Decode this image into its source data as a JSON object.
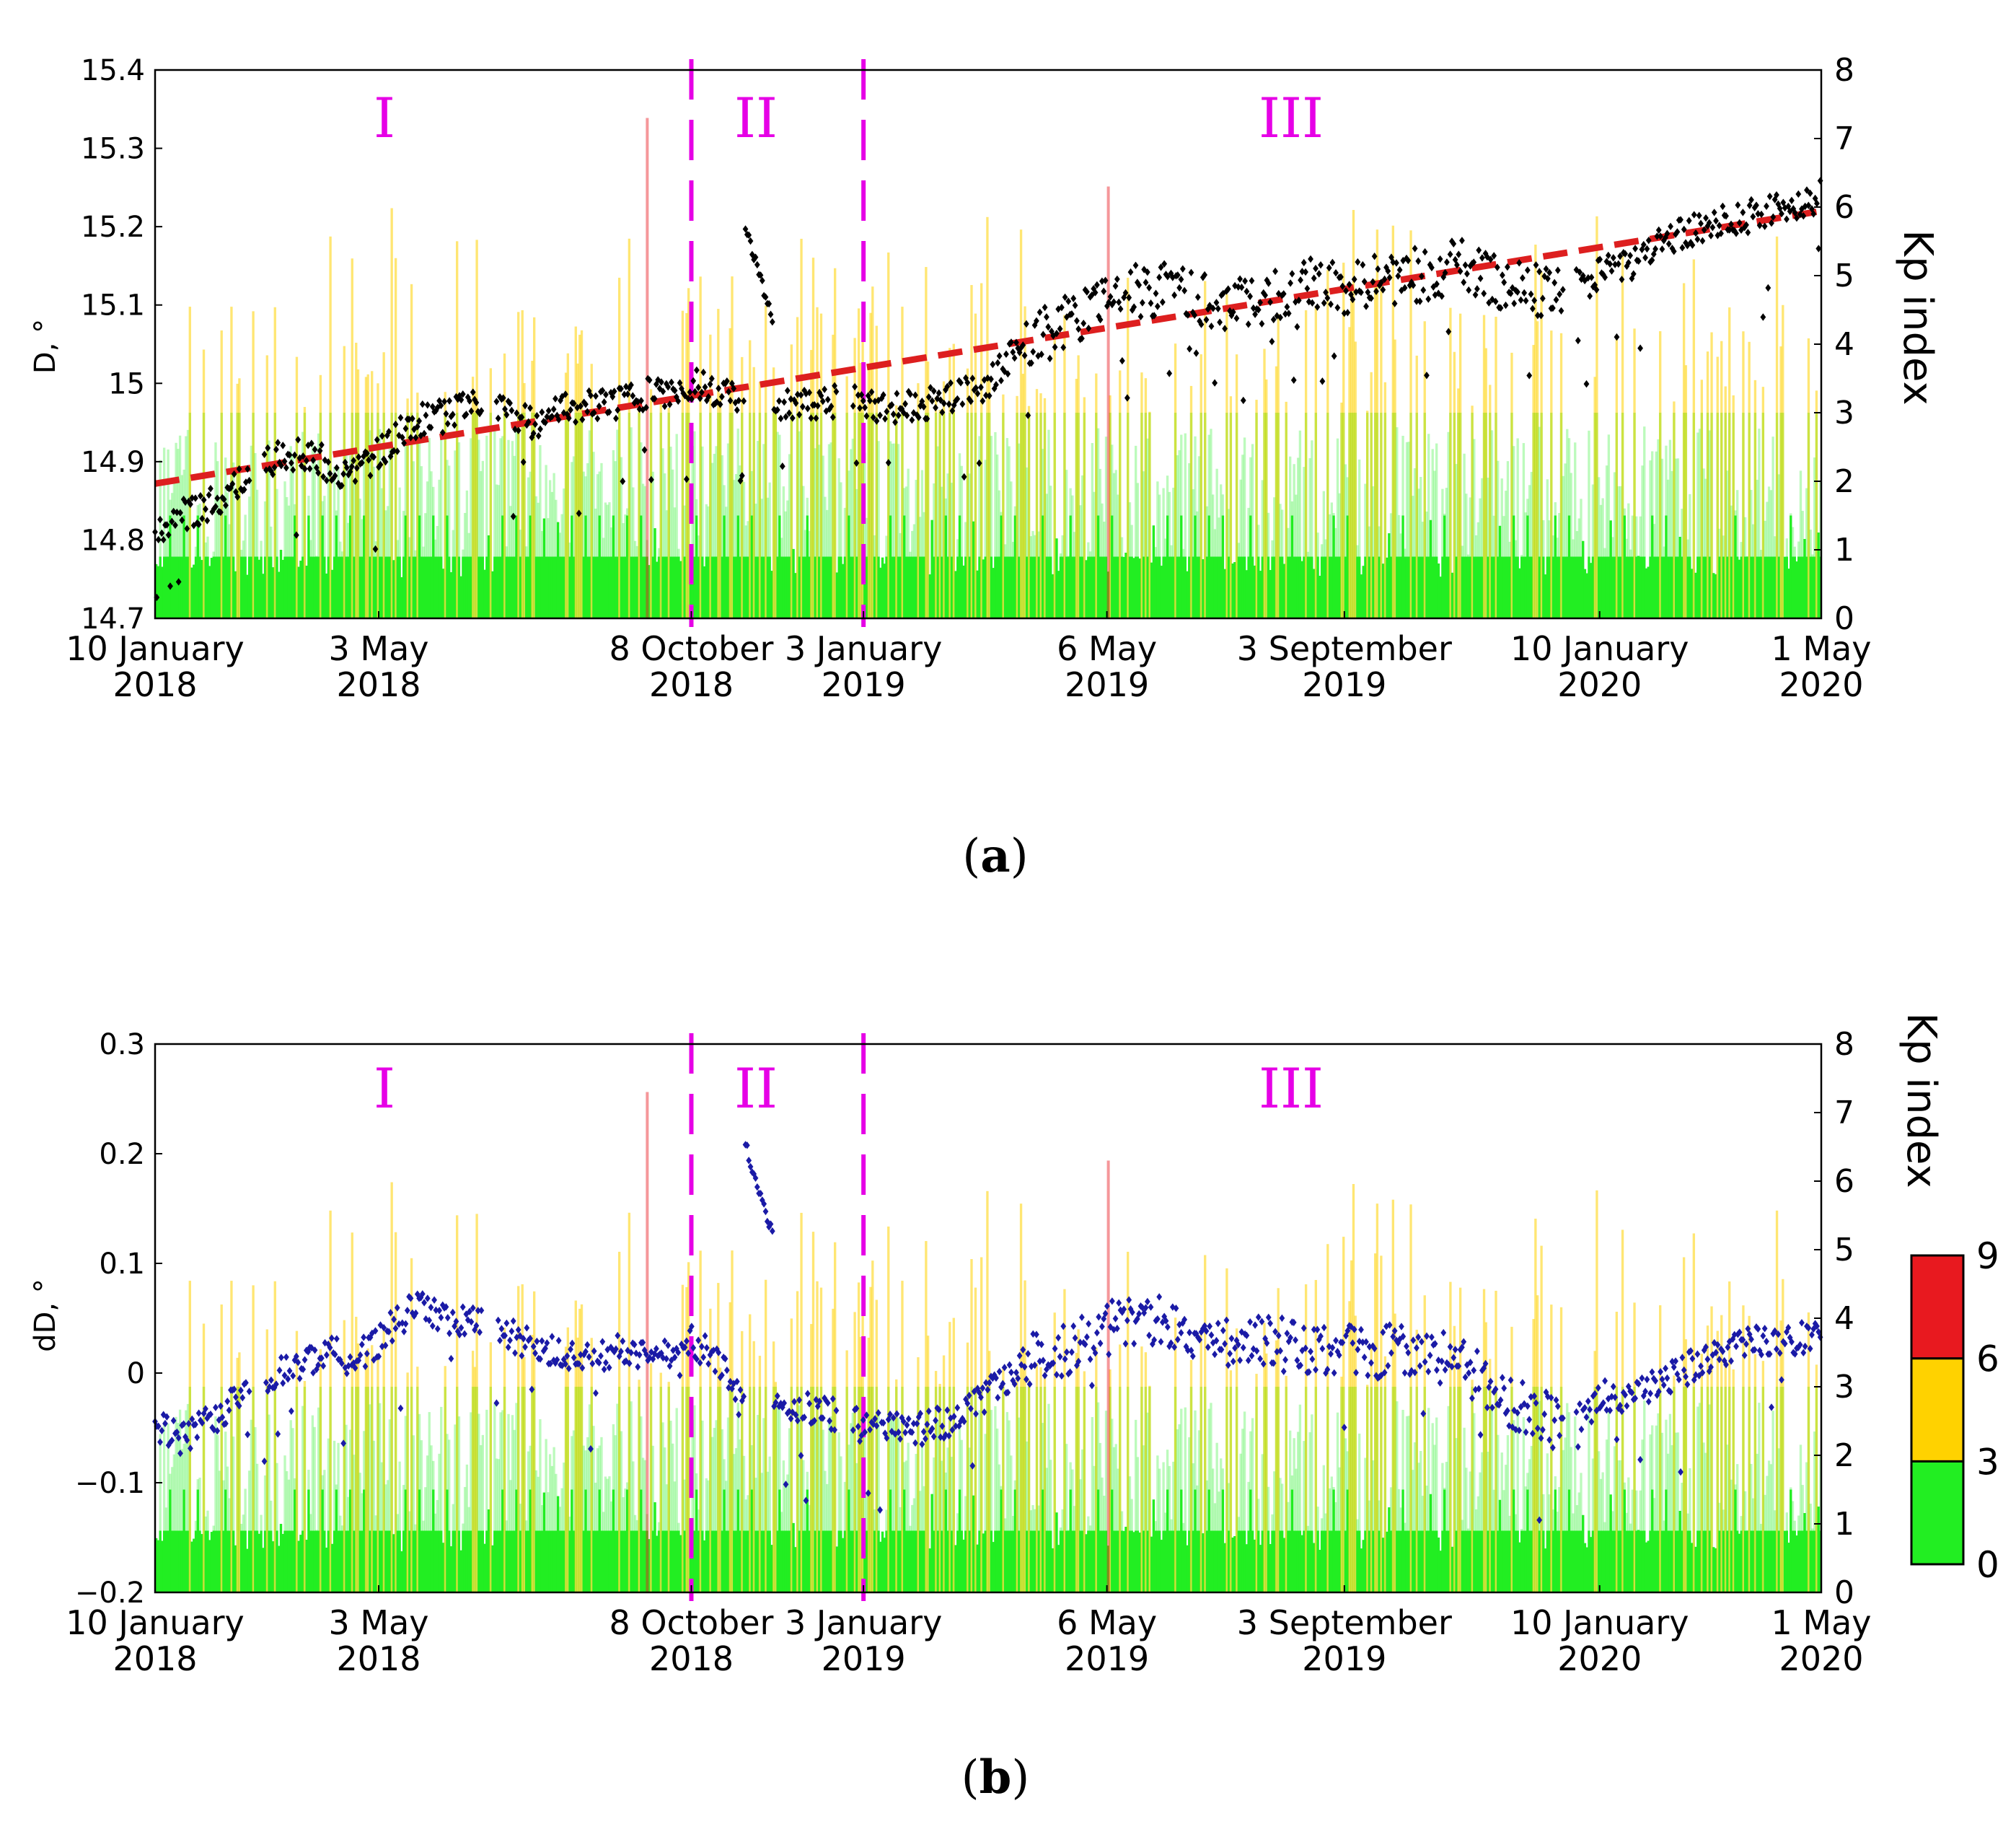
{
  "figure": {
    "panel_labels": [
      "(",
      "a",
      ")",
      "(",
      "b",
      ")"
    ]
  },
  "colors": {
    "kp_low": "#22ee22",
    "kp_mid": "#ffd200",
    "kp_high": "#e8191f",
    "panel_a_points": "#000000",
    "panel_b_points": "#1a1aa6",
    "trend": "#dd1f1f",
    "phase": "#e600e6"
  },
  "phases": {
    "labels": [
      "I",
      "II",
      "III"
    ],
    "boundary_days": [
      271,
      358
    ]
  },
  "colorbar": {
    "ticks": [
      "0",
      "3",
      "6",
      "9"
    ],
    "segments": [
      {
        "from": 0,
        "to": 3,
        "color": "#22ee22"
      },
      {
        "from": 3,
        "to": 6,
        "color": "#ffd200"
      },
      {
        "from": 6,
        "to": 9,
        "color": "#e8191f"
      }
    ]
  },
  "chart_data": [
    {
      "type": "scatter",
      "panel": "a",
      "ylabel": "D, °",
      "y2label": "Kp index",
      "ylim": [
        14.7,
        15.4
      ],
      "yticks": [
        "14.7",
        "14.8",
        "14.9",
        "15",
        "15.1",
        "15.2",
        "15.3",
        "15.4"
      ],
      "y2lim": [
        0,
        8
      ],
      "y2ticks": [
        "0",
        "1",
        "2",
        "3",
        "4",
        "5",
        "6",
        "7",
        "8"
      ],
      "x_unit": "days since 10 January 2018",
      "xlim": [
        0,
        842
      ],
      "xticks": [
        {
          "day": 0,
          "line1": "10 January",
          "line2": "2018"
        },
        {
          "day": 113,
          "line1": "3 May",
          "line2": "2018"
        },
        {
          "day": 271,
          "line1": "8 October",
          "line2": "2018"
        },
        {
          "day": 358,
          "line1": "3 January",
          "line2": "2019"
        },
        {
          "day": 481,
          "line1": "6 May",
          "line2": "2019"
        },
        {
          "day": 601,
          "line1": "3 September",
          "line2": "2019"
        },
        {
          "day": 730,
          "line1": "10 January",
          "line2": "2020"
        },
        {
          "day": 842,
          "line1": "1 May",
          "line2": "2020"
        }
      ],
      "trend_line": {
        "x": [
          0,
          842
        ],
        "y": [
          14.872,
          15.22
        ]
      },
      "series": [
        {
          "name": "D (black points)",
          "anchors": {
            "x": [
              0,
              10,
              25,
              40,
              55,
              70,
              85,
              95,
              105,
              113,
              130,
              150,
              170,
              190,
              210,
              230,
              250,
              265,
              271,
              285,
              295,
              305,
              315,
              330,
              350,
              365,
              380,
              400,
              420,
              440,
              455,
              470,
              481,
              500,
              520,
              540,
              560,
              580,
              601,
              620,
              640,
              660,
              680,
              700,
              720,
              730,
              745,
              760,
              780,
              800,
              820,
              842
            ],
            "y": [
              14.81,
              14.83,
              14.84,
              14.87,
              14.9,
              14.91,
              14.9,
              14.88,
              14.89,
              14.91,
              14.95,
              14.96,
              14.98,
              14.95,
              14.97,
              14.97,
              14.99,
              14.98,
              15.0,
              14.99,
              14.98,
              14.97,
              14.97,
              14.97,
              14.98,
              14.97,
              14.97,
              14.98,
              15.0,
              15.05,
              15.07,
              15.09,
              15.11,
              15.12,
              15.12,
              15.09,
              15.11,
              15.13,
              15.12,
              15.13,
              15.14,
              15.15,
              15.13,
              15.12,
              15.12,
              15.14,
              15.15,
              15.18,
              15.2,
              15.21,
              15.22,
              15.24
            ]
          }
        }
      ]
    },
    {
      "type": "scatter",
      "panel": "b",
      "ylabel": "dD, °",
      "y2label": "Kp index",
      "ylim": [
        -0.2,
        0.3
      ],
      "yticks": [
        "−0.2",
        "−0.1",
        "0",
        "0.1",
        "0.2",
        "0.3"
      ],
      "y2lim": [
        0,
        8
      ],
      "y2ticks": [
        "0",
        "1",
        "2",
        "3",
        "4",
        "5",
        "6",
        "7",
        "8"
      ],
      "x_unit": "days since 10 January 2018",
      "xlim": [
        0,
        842
      ],
      "xticks": [
        {
          "day": 0,
          "line1": "10 January",
          "line2": "2018"
        },
        {
          "day": 113,
          "line1": "3 May",
          "line2": "2018"
        },
        {
          "day": 271,
          "line1": "8 October",
          "line2": "2018"
        },
        {
          "day": 358,
          "line1": "3 January",
          "line2": "2019"
        },
        {
          "day": 481,
          "line1": "6 May",
          "line2": "2019"
        },
        {
          "day": 601,
          "line1": "3 September",
          "line2": "2019"
        },
        {
          "day": 730,
          "line1": "10 January",
          "line2": "2020"
        },
        {
          "day": 842,
          "line1": "1 May",
          "line2": "2020"
        }
      ],
      "series": [
        {
          "name": "dD (blue points)",
          "anchors": {
            "x": [
              0,
              15,
              30,
              45,
              60,
              75,
              90,
              100,
              113,
              130,
              150,
              170,
              185,
              200,
              215,
              230,
              250,
              265,
              271,
              285,
              300,
              315,
              330,
              345,
              360,
              375,
              390,
              405,
              420,
              440,
              460,
              481,
              500,
              520,
              540,
              560,
              580,
              601,
              620,
              640,
              660,
              680,
              700,
              720,
              730,
              750,
              770,
              790,
              810,
              830,
              842
            ],
            "y": [
              -0.05,
              -0.06,
              -0.04,
              -0.02,
              0.0,
              0.01,
              0.02,
              0.01,
              0.03,
              0.06,
              0.05,
              0.04,
              0.03,
              0.02,
              0.01,
              0.02,
              0.02,
              0.01,
              0.03,
              0.01,
              -0.04,
              -0.03,
              -0.03,
              -0.04,
              -0.05,
              -0.05,
              -0.05,
              -0.04,
              -0.02,
              0.01,
              0.02,
              0.04,
              0.05,
              0.04,
              0.03,
              0.03,
              0.02,
              0.02,
              0.02,
              0.02,
              0.01,
              -0.02,
              -0.04,
              -0.05,
              -0.02,
              -0.02,
              0.0,
              0.02,
              0.03,
              0.03,
              0.04
            ]
          }
        }
      ]
    }
  ]
}
